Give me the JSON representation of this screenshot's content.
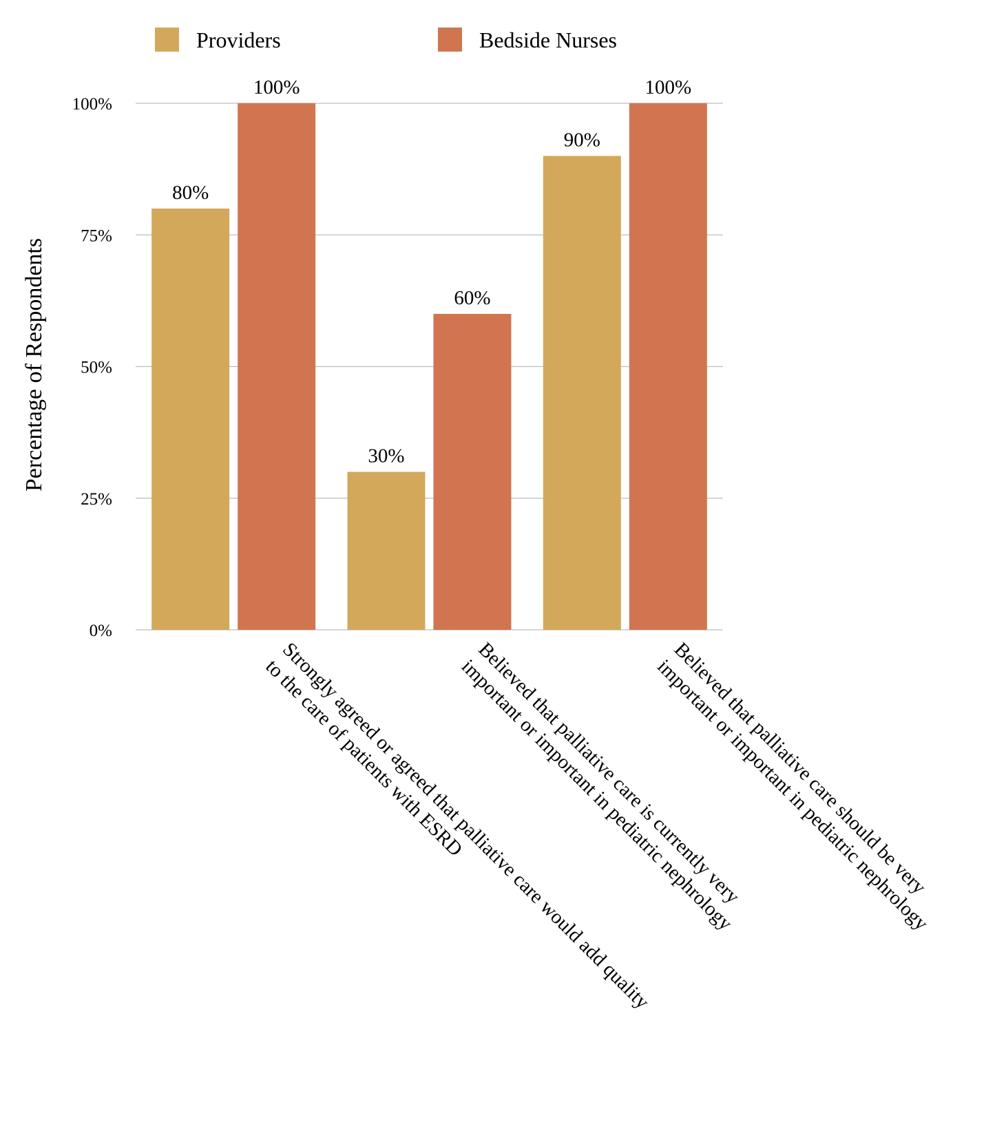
{
  "chart_data": {
    "type": "bar",
    "title": "",
    "xlabel": "",
    "ylabel": "Percentage of Respondents",
    "ylim": [
      0,
      100
    ],
    "yticks": [
      {
        "value": 0,
        "label": "0%"
      },
      {
        "value": 25,
        "label": "25%"
      },
      {
        "value": 50,
        "label": "50%"
      },
      {
        "value": 75,
        "label": "75%"
      },
      {
        "value": 100,
        "label": "100%"
      }
    ],
    "grid": true,
    "legend_position": "top",
    "categories": [
      [
        "Strongly agreed or agreed that palliative care would add quality",
        "to the care of patients with ESRD"
      ],
      [
        "Believed that palliative care is currently very",
        "important or important in pediatric nephrology"
      ],
      [
        "Believed that palliative care should be very",
        "important or important in pediatric nephrology"
      ]
    ],
    "series": [
      {
        "name": "Providers",
        "color": "#D4A85A",
        "values": [
          80,
          30,
          90
        ],
        "labels": [
          "80%",
          "30%",
          "90%"
        ]
      },
      {
        "name": "Bedside Nurses",
        "color": "#D07550",
        "values": [
          100,
          60,
          100
        ],
        "labels": [
          "100%",
          "60%",
          "100%"
        ]
      }
    ]
  }
}
